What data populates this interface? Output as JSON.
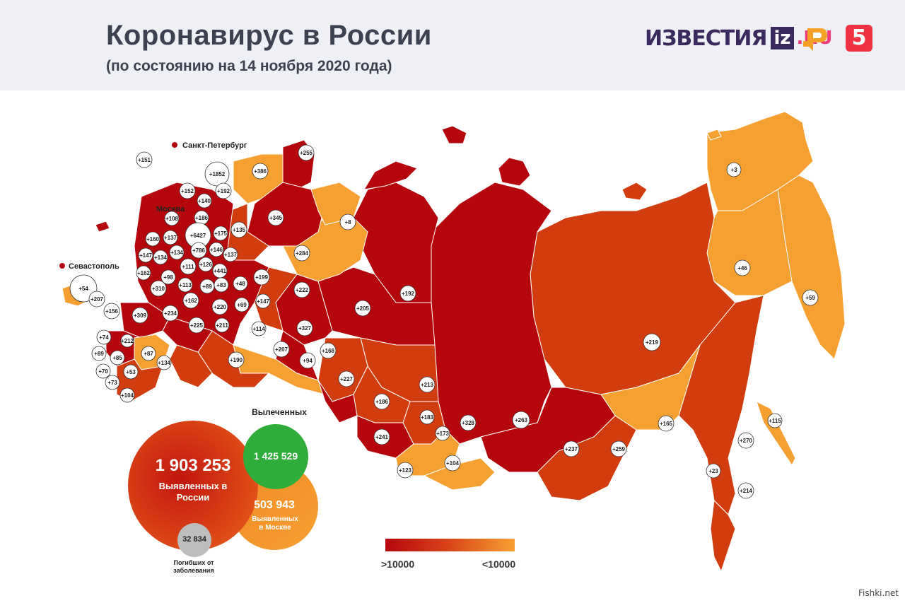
{
  "header": {
    "title": "Коронавирус в России",
    "subtitle": "(по состоянию на 14 ноября 2020 года)",
    "logos": {
      "izvestia_word": "ИЗВЕСТИЯ",
      "izvestia_iz": "iz",
      "izvestia_ru": ".RU",
      "ren_tv": "ren-tv-logo",
      "channel_five": "5"
    }
  },
  "colors": {
    "dark_red": "#b5060d",
    "mid_red": "#d23d10",
    "orange": "#f7a032",
    "recovered_green": "#2ead3a",
    "deaths_gray": "#bdbdbd"
  },
  "cities": {
    "spb": "Санкт-Петербург",
    "moscow": "Москва",
    "sevastopol": "Севастополь"
  },
  "region_labels": [
    {
      "id": "r1",
      "text": "+151"
    },
    {
      "id": "r2",
      "text": "+1852"
    },
    {
      "id": "r3",
      "text": "+386"
    },
    {
      "id": "r4",
      "text": "+255"
    },
    {
      "id": "r5",
      "text": "+152"
    },
    {
      "id": "r6",
      "text": "+192"
    },
    {
      "id": "r7",
      "text": "+140"
    },
    {
      "id": "r8",
      "text": "+186"
    },
    {
      "id": "r9",
      "text": "+108"
    },
    {
      "id": "r10",
      "text": "+345"
    },
    {
      "id": "r11",
      "text": "+8"
    },
    {
      "id": "r12",
      "text": "+160"
    },
    {
      "id": "r13",
      "text": "+137"
    },
    {
      "id": "r14",
      "text": "+6427"
    },
    {
      "id": "r15",
      "text": "+175"
    },
    {
      "id": "r16",
      "text": "+135"
    },
    {
      "id": "r17",
      "text": "+147"
    },
    {
      "id": "r18",
      "text": "+134"
    },
    {
      "id": "r19",
      "text": "+134"
    },
    {
      "id": "r20",
      "text": "+786"
    },
    {
      "id": "r21",
      "text": "+146"
    },
    {
      "id": "r22",
      "text": "+137"
    },
    {
      "id": "r23",
      "text": "+284"
    },
    {
      "id": "r24",
      "text": "+162"
    },
    {
      "id": "r25",
      "text": "+111"
    },
    {
      "id": "r26",
      "text": "+126"
    },
    {
      "id": "r27",
      "text": "+441"
    },
    {
      "id": "r28",
      "text": "+98"
    },
    {
      "id": "r29",
      "text": "+48"
    },
    {
      "id": "r30",
      "text": "+199"
    },
    {
      "id": "r31",
      "text": "+54"
    },
    {
      "id": "r32",
      "text": "+310"
    },
    {
      "id": "r33",
      "text": "+113"
    },
    {
      "id": "r34",
      "text": "+89"
    },
    {
      "id": "r35",
      "text": "+83"
    },
    {
      "id": "r36",
      "text": "+222"
    },
    {
      "id": "r37",
      "text": "+207"
    },
    {
      "id": "r38",
      "text": "+162"
    },
    {
      "id": "r39",
      "text": "+220"
    },
    {
      "id": "r40",
      "text": "+69"
    },
    {
      "id": "r41",
      "text": "+147"
    },
    {
      "id": "r42",
      "text": "+156"
    },
    {
      "id": "r43",
      "text": "+309"
    },
    {
      "id": "r44",
      "text": "+234"
    },
    {
      "id": "r45",
      "text": "+225"
    },
    {
      "id": "r46",
      "text": "+211"
    },
    {
      "id": "r47",
      "text": "+114"
    },
    {
      "id": "r48",
      "text": "+327"
    },
    {
      "id": "r49",
      "text": "+205"
    },
    {
      "id": "r50",
      "text": "+192"
    },
    {
      "id": "r51",
      "text": "+74"
    },
    {
      "id": "r52",
      "text": "+212"
    },
    {
      "id": "r53",
      "text": "+89"
    },
    {
      "id": "r54",
      "text": "+85"
    },
    {
      "id": "r55",
      "text": "+87"
    },
    {
      "id": "r56",
      "text": "+207"
    },
    {
      "id": "r57",
      "text": "+168"
    },
    {
      "id": "r58",
      "text": "+134"
    },
    {
      "id": "r59",
      "text": "+190"
    },
    {
      "id": "r60",
      "text": "+94"
    },
    {
      "id": "r61",
      "text": "+70"
    },
    {
      "id": "r62",
      "text": "+53"
    },
    {
      "id": "r63",
      "text": "+73"
    },
    {
      "id": "r64",
      "text": "+104"
    },
    {
      "id": "r65",
      "text": "+227"
    },
    {
      "id": "r66",
      "text": "+213"
    },
    {
      "id": "r67",
      "text": "+186"
    },
    {
      "id": "r68",
      "text": "+183"
    },
    {
      "id": "r69",
      "text": "+173"
    },
    {
      "id": "r70",
      "text": "+328"
    },
    {
      "id": "r71",
      "text": "+263"
    },
    {
      "id": "r72",
      "text": "+241"
    },
    {
      "id": "r73",
      "text": "+104"
    },
    {
      "id": "r74",
      "text": "+123"
    },
    {
      "id": "r75",
      "text": "+237"
    },
    {
      "id": "r76",
      "text": "+259"
    },
    {
      "id": "r77",
      "text": "+219"
    },
    {
      "id": "r78",
      "text": "+165"
    },
    {
      "id": "r79",
      "text": "+3"
    },
    {
      "id": "r80",
      "text": "+46"
    },
    {
      "id": "r81",
      "text": "+59"
    },
    {
      "id": "r82",
      "text": "+115"
    },
    {
      "id": "r83",
      "text": "+270"
    },
    {
      "id": "r84",
      "text": "+23"
    },
    {
      "id": "r85",
      "text": "+214"
    }
  ],
  "stats": {
    "total_value": "1 903 253",
    "total_label": "Выявленных в России",
    "recovered_title": "Вылеченных",
    "recovered_value": "1 425 529",
    "moscow_value": "503 943",
    "moscow_label": "Выявленных в Москве",
    "deaths_value": "32 834",
    "deaths_label": "Погибших от заболевания"
  },
  "legend": {
    "left_label": ">10000",
    "right_label": "<10000"
  },
  "watermark": "Fishki.net"
}
